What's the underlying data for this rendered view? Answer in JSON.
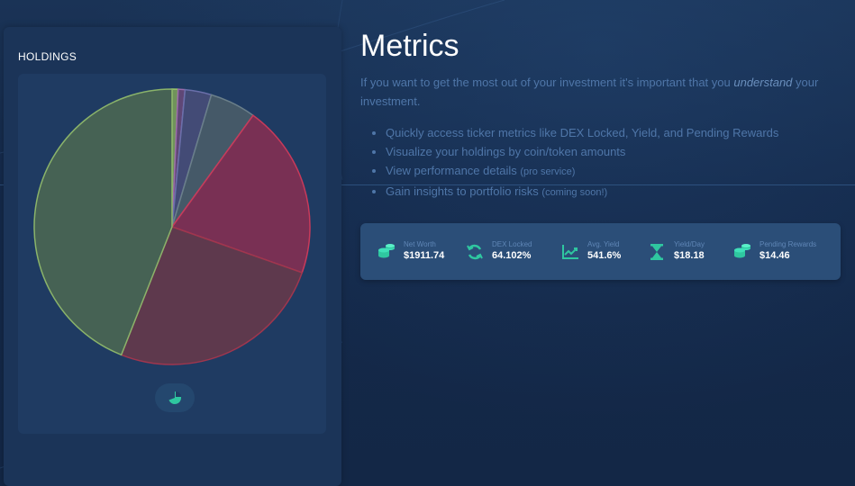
{
  "holdings": {
    "title": "HOLDINGS",
    "toggle_icon": "pie-chart-icon"
  },
  "chart_data": {
    "type": "pie",
    "title": "",
    "slices": [
      {
        "value": 0.7,
        "color": "#7fa35a"
      },
      {
        "value": 0.8,
        "color": "#6b4a7a"
      },
      {
        "value": 3.1,
        "color": "#4a4f7a"
      },
      {
        "value": 5.4,
        "color": "#4c5f6a"
      },
      {
        "value": 20.4,
        "color": "#8a2f52"
      },
      {
        "value": 25.6,
        "color": "#6a3a4a"
      },
      {
        "value": 44.0,
        "color": "#4e6a52"
      }
    ]
  },
  "metrics": {
    "title": "Metrics",
    "intro_before": "If you want to get the most out of your investment it's important that you ",
    "intro_emphasis": "understand",
    "intro_after": " your investment.",
    "features": [
      {
        "text": "Quickly access ticker metrics like DEX Locked, Yield, and Pending Rewards",
        "note": ""
      },
      {
        "text": "Visualize your holdings by coin/token amounts",
        "note": ""
      },
      {
        "text": "View performance details ",
        "note": "(pro service)"
      },
      {
        "text": "Gain insights to portfolio risks ",
        "note": "(coming soon!)"
      }
    ]
  },
  "stats": [
    {
      "label": "Net Worth",
      "value": "$1911.74",
      "icon": "coins-icon"
    },
    {
      "label": "DEX Locked",
      "value": "64.102%",
      "icon": "refresh-icon"
    },
    {
      "label": "Avg. Yield",
      "value": "541.6%",
      "icon": "chart-line-icon"
    },
    {
      "label": "Yield/Day",
      "value": "$18.18",
      "icon": "hourglass-icon"
    },
    {
      "label": "Pending Rewards",
      "value": "$14.46",
      "icon": "coins-icon"
    }
  ],
  "colors": {
    "accent": "#2fc7a0",
    "muted_text": "#4f76a8",
    "card": "#1b3458",
    "panel": "#1f3b62",
    "stats_bar": "#2b4e78"
  }
}
